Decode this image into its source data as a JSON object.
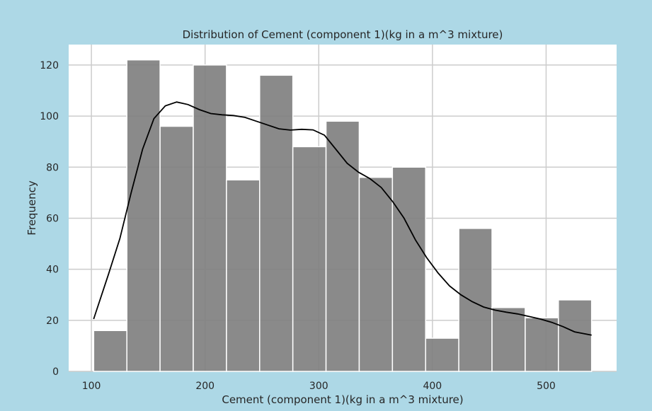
{
  "chart_data": {
    "type": "bar",
    "title": "Distribution of Cement (component 1)(kg in a m^3 mixture)",
    "xlabel": "Cement (component 1)(kg in a m^3 mixture)",
    "ylabel": "Frequency",
    "xlim": [
      80,
      562
    ],
    "ylim": [
      0,
      128
    ],
    "xticks": [
      100,
      200,
      300,
      400,
      500
    ],
    "yticks": [
      0,
      20,
      40,
      60,
      80,
      100,
      120
    ],
    "grid": true,
    "bin_edges": [
      102,
      131.2,
      160.4,
      189.6,
      218.8,
      248,
      277.2,
      306.4,
      335.6,
      364.8,
      394,
      423.2,
      452.4,
      481.6,
      510.8,
      540
    ],
    "counts": [
      16,
      122,
      96,
      120,
      75,
      116,
      88,
      98,
      76,
      80,
      13,
      56,
      25,
      21,
      28
    ],
    "bar_color": "#808080",
    "kde": {
      "x": [
        102,
        115,
        125,
        135,
        145,
        155,
        165,
        175,
        185,
        195,
        205,
        215,
        225,
        235,
        245,
        255,
        265,
        275,
        285,
        295,
        305,
        315,
        325,
        335,
        345,
        355,
        365,
        375,
        385,
        395,
        405,
        415,
        425,
        435,
        445,
        455,
        465,
        475,
        485,
        495,
        505,
        515,
        525,
        540
      ],
      "y": [
        20.5,
        38,
        52,
        70,
        87,
        99,
        104,
        105.5,
        104.5,
        102.5,
        101,
        100.5,
        100.2,
        99.5,
        98,
        96.5,
        95,
        94.5,
        94.8,
        94.6,
        92.5,
        87,
        81.5,
        78,
        75.5,
        72,
        66.5,
        60,
        51.5,
        44.5,
        38.5,
        33.5,
        30,
        27.3,
        25.2,
        24,
        23.2,
        22.5,
        21.5,
        20.5,
        19.2,
        17.5,
        15.5,
        14.2
      ],
      "color": "#000000"
    }
  }
}
